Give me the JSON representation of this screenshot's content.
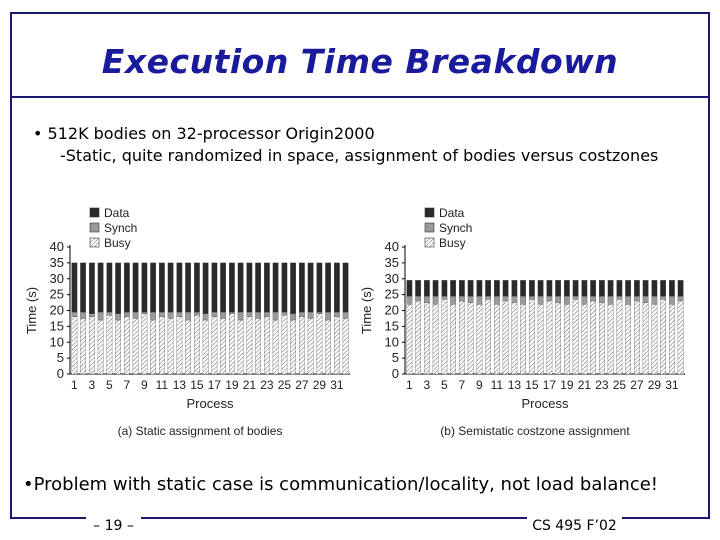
{
  "slide": {
    "title": "Execution Time Breakdown",
    "bullet1": "• 512K bodies on 32-processor Origin2000",
    "sub1": "-Static, quite randomized in space, assignment of bodies versus costzones",
    "bullet2": "•Problem with static case is communication/locality, not load balance!",
    "footer_left": "– 19 –",
    "footer_right": "CS 495 F’02"
  },
  "chart_data": [
    {
      "type": "bar",
      "stacked": true,
      "title": "(a) Static assignment of bodies",
      "xlabel": "Process",
      "ylabel": "Time (s)",
      "ylim": [
        0,
        40
      ],
      "yticks": [
        0,
        5,
        10,
        15,
        20,
        25,
        30,
        35,
        40
      ],
      "xticks": [
        "1",
        "3",
        "5",
        "7",
        "9",
        "11",
        "13",
        "15",
        "17",
        "19",
        "21",
        "23",
        "25",
        "27",
        "29",
        "31"
      ],
      "categories": [
        1,
        2,
        3,
        4,
        5,
        6,
        7,
        8,
        9,
        10,
        11,
        12,
        13,
        14,
        15,
        16,
        17,
        18,
        19,
        20,
        21,
        22,
        23,
        24,
        25,
        26,
        27,
        28,
        29,
        30,
        31,
        32
      ],
      "legend": [
        "Data",
        "Synch",
        "Busy"
      ],
      "series": [
        {
          "name": "Busy",
          "values": [
            18,
            17.5,
            18,
            17,
            18.5,
            17,
            18,
            17.5,
            19,
            17,
            18,
            17.5,
            18,
            17,
            18.5,
            17,
            18,
            17.5,
            19,
            17,
            18,
            17.5,
            18,
            17,
            18.5,
            17,
            18,
            17.5,
            19,
            17,
            18,
            17.5
          ]
        },
        {
          "name": "Synch",
          "values": [
            1.5,
            2,
            1,
            2.5,
            1,
            2,
            1.5,
            2,
            0.5,
            2.5,
            1.5,
            2,
            1.5,
            2.5,
            1,
            2,
            1.5,
            2,
            0.5,
            2.5,
            1.5,
            2,
            1.5,
            2.5,
            1,
            2,
            1.5,
            2,
            0.5,
            2.5,
            1.5,
            2
          ]
        },
        {
          "name": "Data",
          "values": [
            15.5,
            15.5,
            16,
            15.5,
            15.5,
            16,
            15.5,
            15.5,
            15.5,
            15.5,
            15.5,
            15.5,
            15.5,
            15.5,
            15.5,
            16,
            15.5,
            15.5,
            15.5,
            15.5,
            15.5,
            15.5,
            15.5,
            15.5,
            15.5,
            16,
            15.5,
            15.5,
            15.5,
            15.5,
            15.5,
            15.5
          ]
        }
      ]
    },
    {
      "type": "bar",
      "stacked": true,
      "title": "(b) Semistatic costzone assignment",
      "xlabel": "Process",
      "ylabel": "Time (s)",
      "ylim": [
        0,
        40
      ],
      "yticks": [
        0,
        5,
        10,
        15,
        20,
        25,
        30,
        35,
        40
      ],
      "xticks": [
        "1",
        "3",
        "5",
        "7",
        "9",
        "11",
        "13",
        "15",
        "17",
        "19",
        "21",
        "23",
        "25",
        "27",
        "29",
        "31"
      ],
      "categories": [
        1,
        2,
        3,
        4,
        5,
        6,
        7,
        8,
        9,
        10,
        11,
        12,
        13,
        14,
        15,
        16,
        17,
        18,
        19,
        20,
        21,
        22,
        23,
        24,
        25,
        26,
        27,
        28,
        29,
        30,
        31,
        32
      ],
      "legend": [
        "Data",
        "Synch",
        "Busy"
      ],
      "series": [
        {
          "name": "Busy",
          "values": [
            22,
            23,
            22.5,
            22,
            23.5,
            22,
            23,
            22.5,
            22,
            23.5,
            22,
            23,
            22.5,
            22,
            23.5,
            22,
            23,
            22.5,
            22,
            23.5,
            22,
            23,
            22.5,
            22,
            23.5,
            22,
            23,
            22.5,
            22,
            23.5,
            22,
            23
          ]
        },
        {
          "name": "Synch",
          "values": [
            2.5,
            1.5,
            2,
            2.5,
            1,
            2.5,
            1.5,
            2,
            2.5,
            1,
            2.5,
            1.5,
            2,
            2.5,
            1,
            2.5,
            1.5,
            2,
            2.5,
            1,
            2.5,
            1.5,
            2,
            2.5,
            1,
            2.5,
            1.5,
            2,
            2.5,
            1,
            2.5,
            1.5
          ]
        },
        {
          "name": "Data",
          "values": [
            5,
            5,
            5,
            5,
            5,
            5,
            5,
            5,
            5,
            5,
            5,
            5,
            5,
            5,
            5,
            5,
            5,
            5,
            5,
            5,
            5,
            5,
            5,
            5,
            5,
            5,
            5,
            5,
            5,
            5,
            5,
            5
          ]
        }
      ]
    }
  ]
}
